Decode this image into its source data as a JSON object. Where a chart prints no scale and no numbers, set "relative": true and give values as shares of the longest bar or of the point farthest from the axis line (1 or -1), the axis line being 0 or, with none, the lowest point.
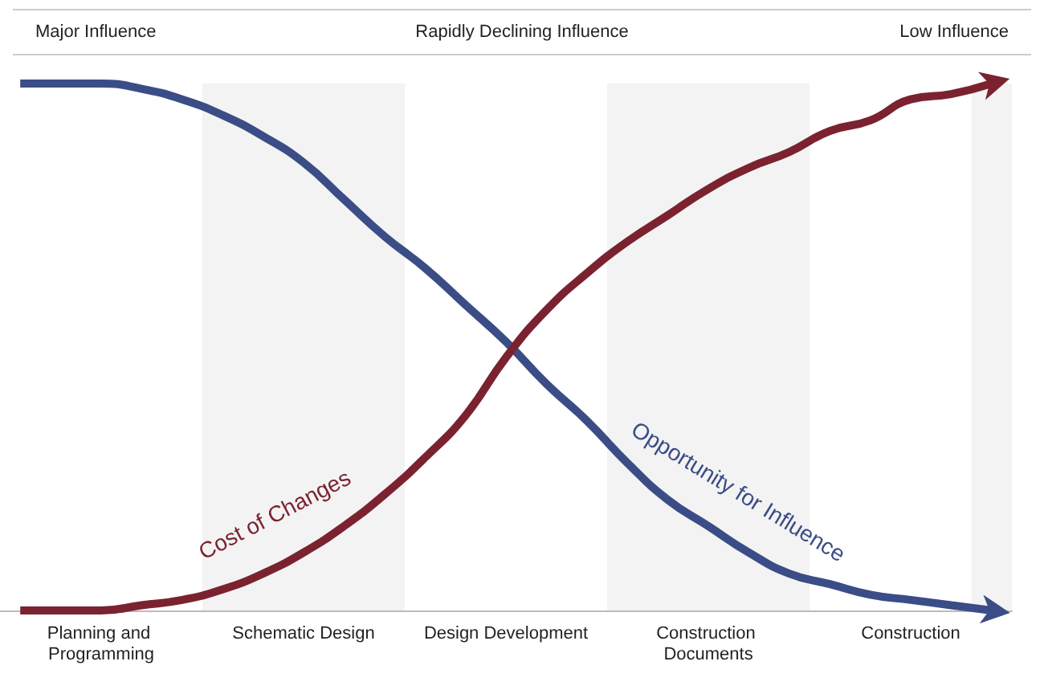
{
  "chart_data": {
    "type": "line",
    "relative": true,
    "legend": false,
    "grid": false,
    "annotations": [
      "Major Influence",
      "Rapidly Declining Influence",
      "Low Influence"
    ],
    "categories": [
      null,
      null,
      "Planning and Programming",
      null,
      null,
      null,
      null,
      "Schematic Design",
      null,
      null,
      null,
      null,
      "Design Development",
      null,
      null,
      null,
      null,
      "Construction Documents",
      null,
      null,
      null,
      null,
      "Construction",
      null,
      null
    ],
    "series": [
      {
        "name": "Opportunity for Influence",
        "color": "#3b4d86",
        "values": [
          1,
          1,
          1,
          0.99,
          0.97,
          0.94,
          0.9,
          0.85,
          0.78,
          0.71,
          0.65,
          0.58,
          0.51,
          0.43,
          0.36,
          0.28,
          0.21,
          0.16,
          0.11,
          0.07,
          0.05,
          0.03,
          0.02,
          0.01,
          0
        ]
      },
      {
        "name": "Cost of Changes",
        "color": "#7b2230",
        "values": [
          0,
          0,
          0,
          0.01,
          0.02,
          0.04,
          0.07,
          0.11,
          0.16,
          0.22,
          0.29,
          0.37,
          0.48,
          0.57,
          0.64,
          0.7,
          0.75,
          0.8,
          0.84,
          0.87,
          0.91,
          0.93,
          0.97,
          0.98,
          1
        ]
      }
    ]
  }
}
